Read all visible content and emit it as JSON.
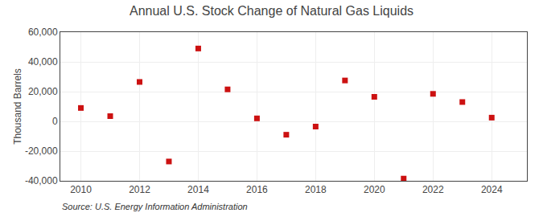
{
  "chart_data": {
    "type": "scatter",
    "title": "Annual U.S. Stock Change of Natural Gas Liquids",
    "ylabel": "Thousand Barrels",
    "annotations": [
      "Source: U.S. Energy Information Administration"
    ],
    "x": [
      2010,
      2011,
      2012,
      2013,
      2014,
      2015,
      2016,
      2017,
      2018,
      2019,
      2020,
      2021,
      2022,
      2023,
      2024
    ],
    "values": [
      9000,
      3500,
      26500,
      -27000,
      49000,
      21500,
      2000,
      -9000,
      -3500,
      27500,
      16500,
      -38500,
      18500,
      13000,
      2500
    ],
    "color": "#cc1111",
    "marker": "square",
    "xlim": [
      2009.3,
      2025.2
    ],
    "xticks": [
      2010,
      2012,
      2014,
      2016,
      2018,
      2020,
      2022,
      2024
    ],
    "ylim": [
      -40000,
      60000
    ],
    "yticks": [
      {
        "value": -40000,
        "label": "-40,000"
      },
      {
        "value": -20000,
        "label": "-20,000"
      },
      0,
      {
        "value": 20000,
        "label": "20,000"
      },
      {
        "value": 40000,
        "label": "40,000"
      },
      {
        "value": 60000,
        "label": "60,000"
      }
    ],
    "grid": true
  }
}
